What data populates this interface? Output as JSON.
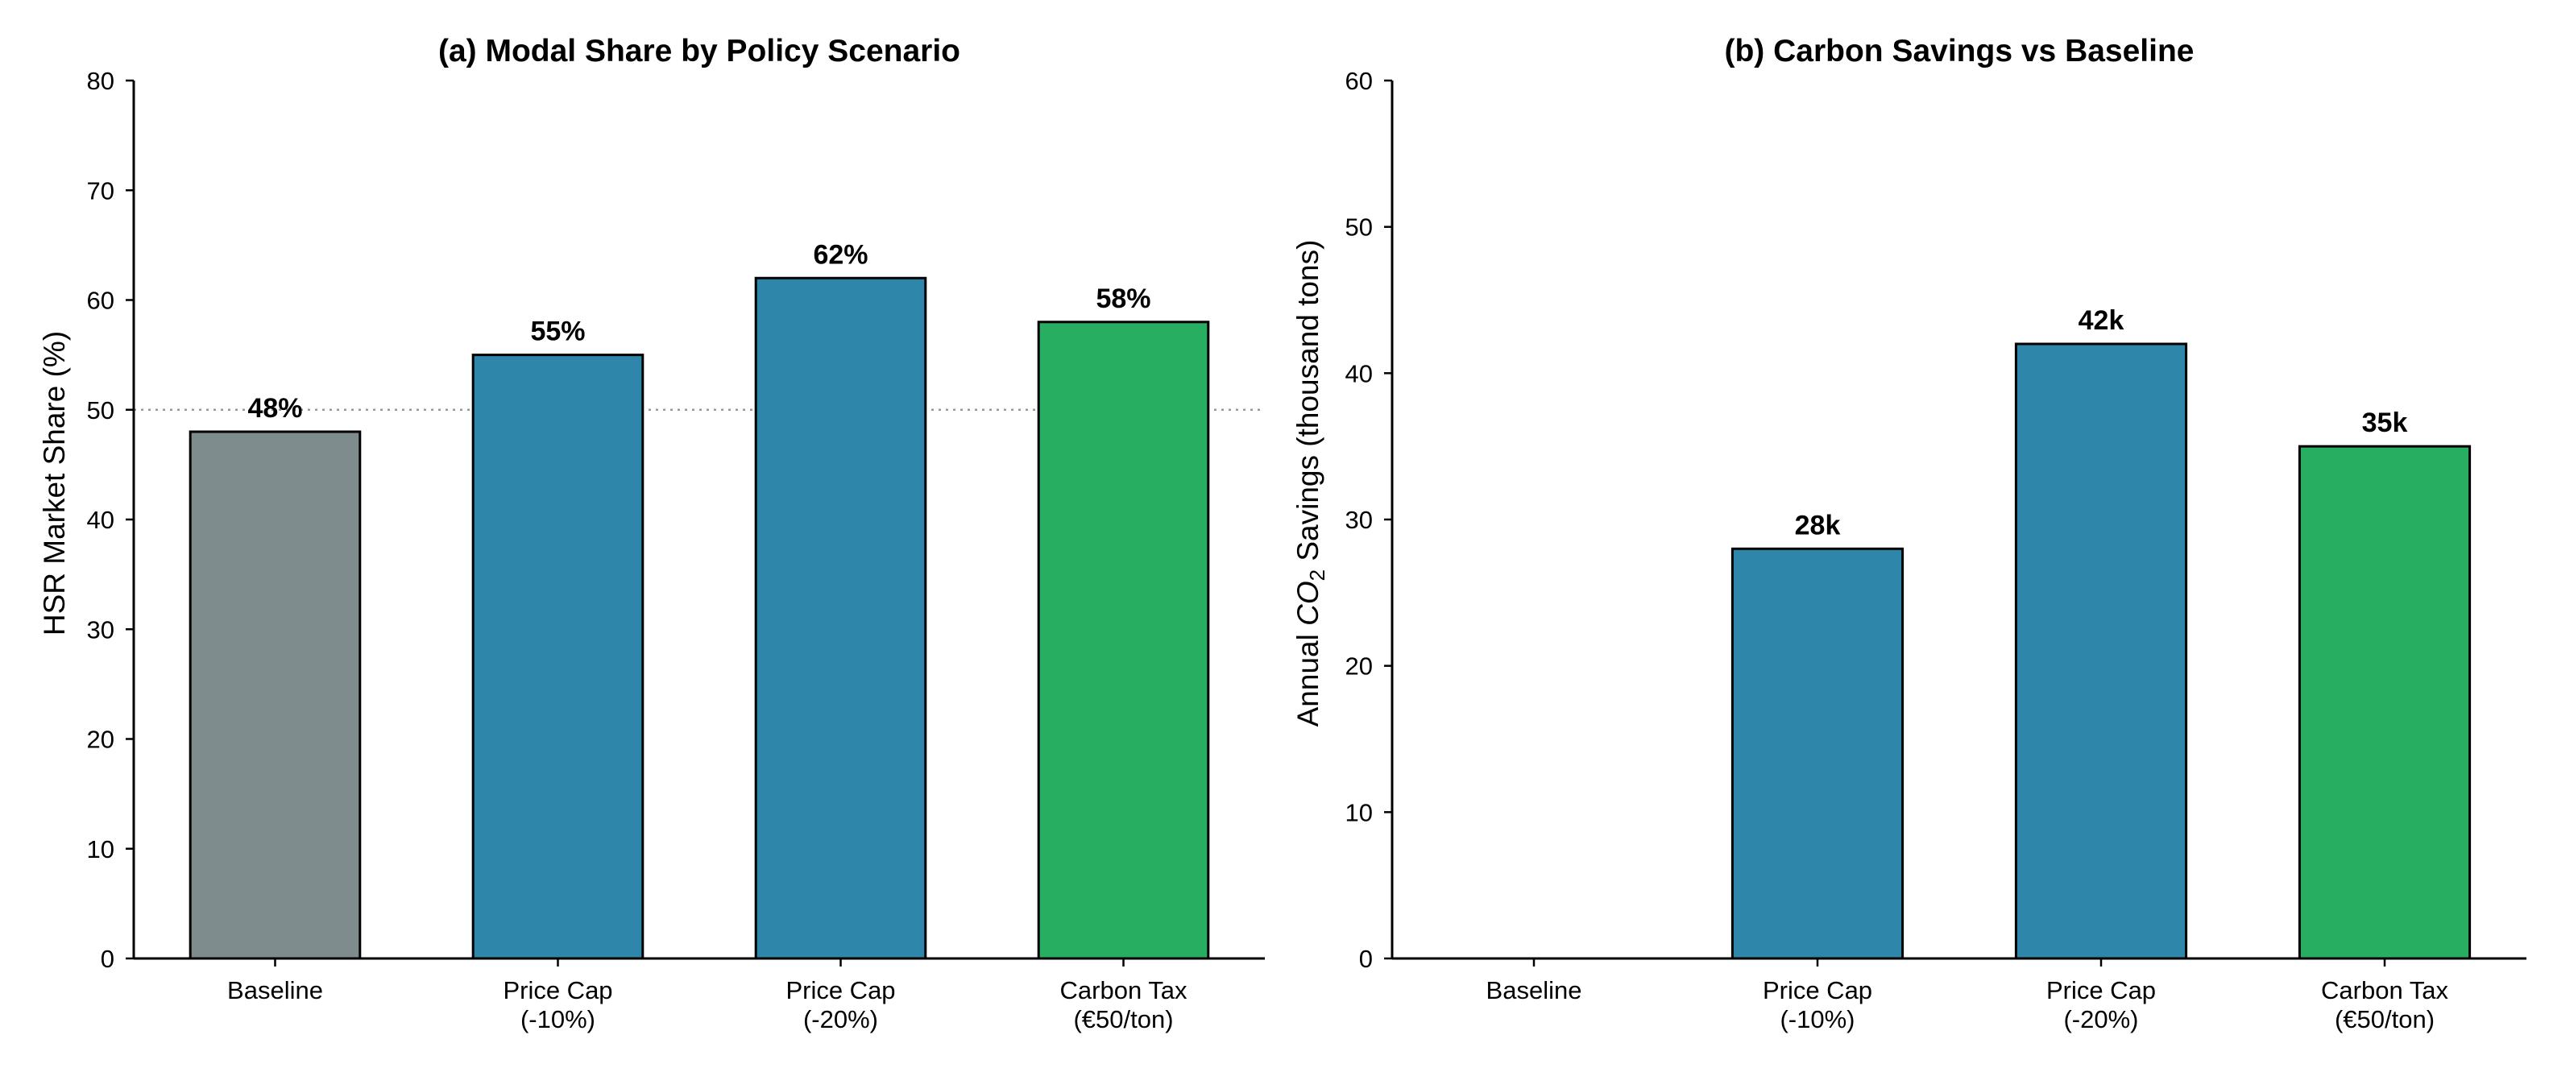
{
  "chart_data": [
    {
      "type": "bar",
      "title": "(a) Modal Share by Policy Scenario",
      "xlabel": "",
      "ylabel": "HSR Market Share (%)",
      "ylim": [
        0,
        80
      ],
      "yticks": [
        0,
        10,
        20,
        30,
        40,
        50,
        60,
        70,
        80
      ],
      "categories": [
        [
          "Baseline"
        ],
        [
          "Price Cap",
          "(-10%)"
        ],
        [
          "Price Cap",
          "(-20%)"
        ],
        [
          "Carbon Tax",
          "(€50/ton)"
        ]
      ],
      "values": [
        48,
        55,
        62,
        58
      ],
      "data_labels": [
        "48%",
        "55%",
        "62%",
        "58%"
      ],
      "colors": [
        "#7f8c8d",
        "#2e86ab",
        "#2e86ab",
        "#27ae60"
      ],
      "reference_line": 50
    },
    {
      "type": "bar",
      "title": "(b) Carbon Savings vs Baseline",
      "xlabel": "",
      "ylabel_parts": [
        "Annual ",
        "CO",
        "2",
        " Savings (thousand tons)"
      ],
      "ylim": [
        0,
        60
      ],
      "yticks": [
        0,
        10,
        20,
        30,
        40,
        50,
        60
      ],
      "categories": [
        [
          "Baseline"
        ],
        [
          "Price Cap",
          "(-10%)"
        ],
        [
          "Price Cap",
          "(-20%)"
        ],
        [
          "Carbon Tax",
          "(€50/ton)"
        ]
      ],
      "values": [
        0,
        28,
        42,
        35
      ],
      "data_labels": [
        "",
        "28k",
        "42k",
        "35k"
      ],
      "colors": [
        "#7f8c8d",
        "#2e86ab",
        "#2e86ab",
        "#27ae60"
      ]
    }
  ]
}
